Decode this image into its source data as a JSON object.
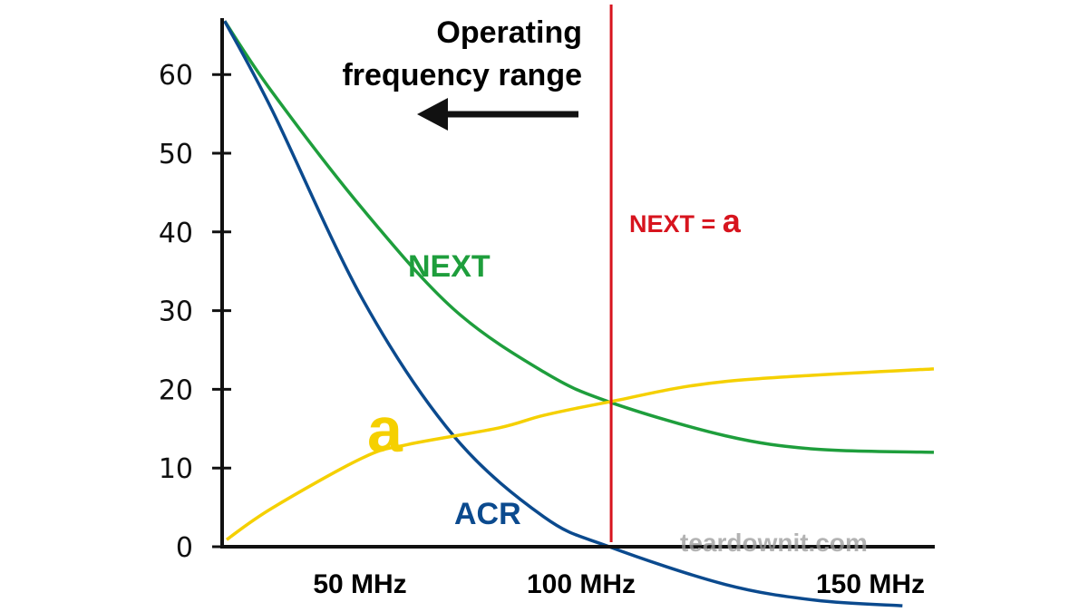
{
  "chart_data": {
    "type": "line",
    "title": "",
    "xlabel": "",
    "ylabel": "",
    "xlim": [
      22,
      164.7
    ],
    "ylim": [
      -8.3,
      68.9
    ],
    "grid": false,
    "y_ticks": [
      0,
      10,
      20,
      30,
      40,
      50,
      60
    ],
    "y_tick_labels": [
      "0",
      "10",
      "20",
      "30",
      "40",
      "50",
      "60"
    ],
    "x_ticks": [
      50,
      100,
      150
    ],
    "x_tick_labels": [
      "50 MHz",
      "100 MHz",
      "150 MHz"
    ],
    "series": [
      {
        "name": "NEXT",
        "color": "#1e9e3c",
        "x": [
          22.5,
          32,
          50.2,
          68.4,
          86.5,
          99.6,
          122.9,
          141,
          164.7
        ],
        "y": [
          66.8,
          57.8,
          42.9,
          30.2,
          22.2,
          18.4,
          14.1,
          12.4,
          12.0
        ]
      },
      {
        "name": "ACR",
        "color": "#0b4a8e",
        "x": [
          22.5,
          32,
          50.2,
          68.4,
          86.5,
          99.6,
          122.9,
          141,
          158.4
        ],
        "y": [
          66.8,
          55.5,
          31.4,
          14.1,
          3.8,
          0,
          -4.8,
          -6.8,
          -7.5
        ]
      },
      {
        "name": "a",
        "color": "#f5d000",
        "x": [
          22.9,
          32,
          50.2,
          59.3,
          77.5,
          86.5,
          99.6,
          122.9,
          164.7
        ],
        "y": [
          0.9,
          4.9,
          11.3,
          13.0,
          15.1,
          16.7,
          18.4,
          21.0,
          22.6
        ]
      }
    ],
    "vertical_line": {
      "x": 100,
      "color": "#d7141e",
      "label": "NEXT = ",
      "label_symbol": "a"
    },
    "annotations": {
      "operating_range_line1": "Operating",
      "operating_range_line2": "frequency range",
      "next_label": "NEXT",
      "acr_label": "ACR",
      "a_label": "a",
      "watermark": "teardownit.com"
    }
  }
}
